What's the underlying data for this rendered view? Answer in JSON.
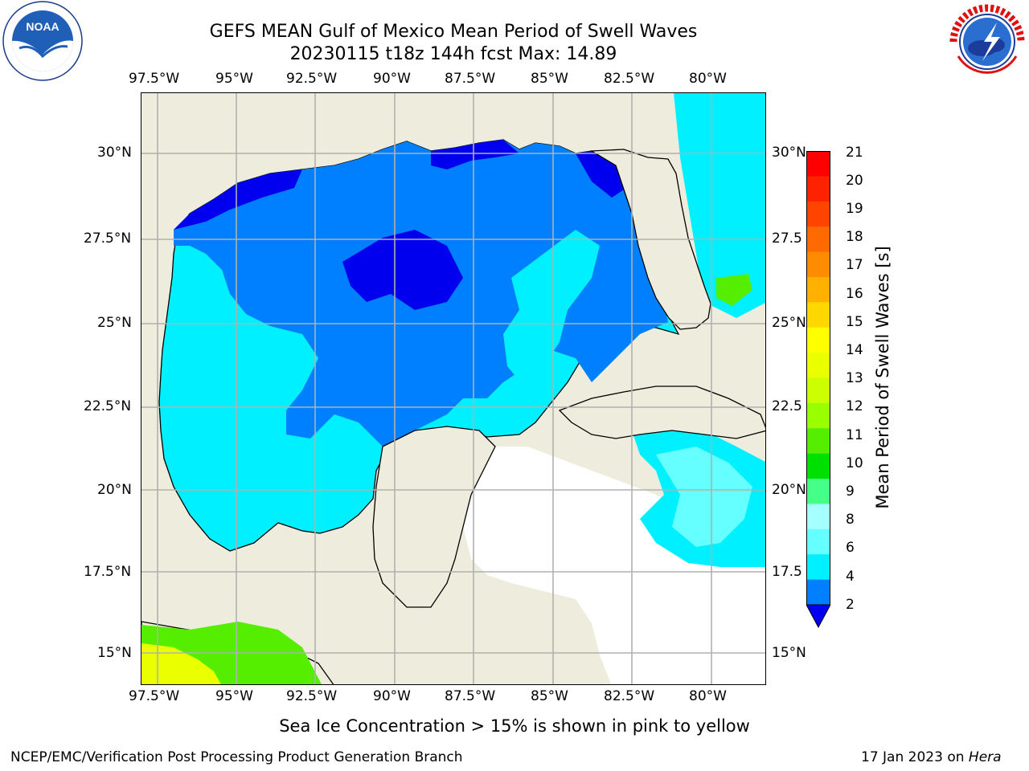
{
  "title": {
    "line1": "GEFS MEAN Gulf of Mexico Mean Period of Swell Waves",
    "line2": "20230115 t18z 144h fcst   Max: 14.89"
  },
  "logos": {
    "left": "noaa-logo",
    "right": "national-weather-service-logo",
    "left_text": "NOAA",
    "right_text": "NATIONAL WEATHER SERVICE"
  },
  "lon_labels": [
    "97.5°W",
    "95°W",
    "92.5°W",
    "90°W",
    "87.5°W",
    "85°W",
    "82.5°W",
    "80°W"
  ],
  "lat_labels_left": [
    "30°N",
    "27.5°N",
    "25°N",
    "22.5°N",
    "20°N",
    "17.5°N",
    "15°N"
  ],
  "lat_labels_right": [
    "30°N",
    "27.5",
    "25°N",
    "22.5",
    "20°N",
    "17.5",
    "15°N"
  ],
  "colorbar": {
    "label": "Mean Period of Swell Waves [s]",
    "ticks": [
      "21",
      "20",
      "19",
      "18",
      "17",
      "16",
      "15",
      "14",
      "13",
      "12",
      "11",
      "10",
      "9",
      "8",
      "6",
      "4",
      "2"
    ],
    "colors": [
      "#ff0000",
      "#ff2200",
      "#ff4400",
      "#ff6a00",
      "#ff8c00",
      "#ffb000",
      "#ffd700",
      "#ffff00",
      "#eaff00",
      "#ccff00",
      "#99ff00",
      "#55ee00",
      "#00e000",
      "#44ff88",
      "#a6ffff",
      "#66ffff",
      "#00f0ff",
      "#0080ff"
    ],
    "under_color": "#0000ee"
  },
  "caption": "Sea Ice Concentration > 15% is shown in pink to yellow",
  "footer": {
    "left": "NCEP/EMC/Verification Post Processing Product Generation Branch",
    "right_date": "17 Jan 2023 on ",
    "right_host": "Hera"
  }
}
